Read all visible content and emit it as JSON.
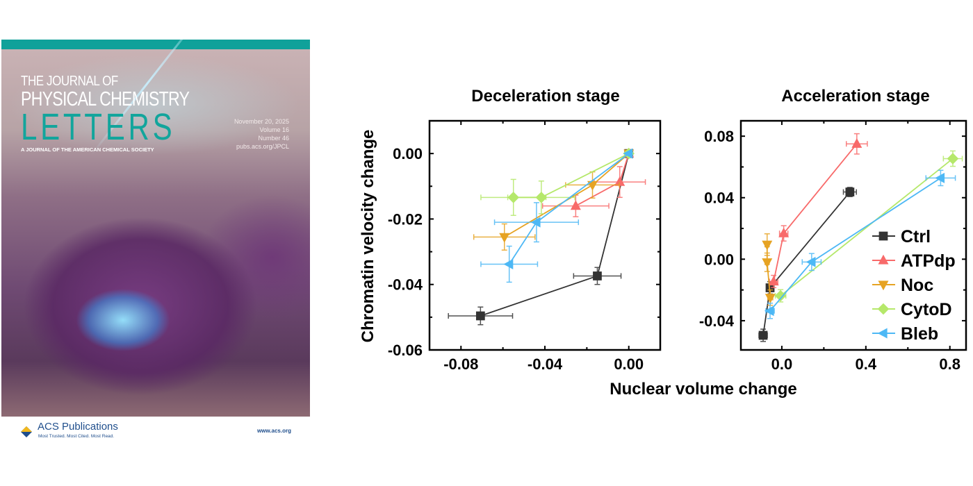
{
  "cover": {
    "journal_line1": "THE JOURNAL OF",
    "journal_line2": "PHYSICAL CHEMISTRY",
    "journal_line3": "LETTERS",
    "subtitle": "A JOURNAL OF THE AMERICAN CHEMICAL SOCIETY",
    "date": "November 20, 2025",
    "volume": "Volume 16",
    "number": "Number 46",
    "url": "pubs.acs.org/JPCL",
    "publisher": "ACS Publications",
    "publisher_tagline": "Most Trusted. Most Cited. Most Read.",
    "website": "www.acs.org",
    "colors": {
      "teal": "#10a19a",
      "acs_blue": "#1f4e8c"
    }
  },
  "shared_labels": {
    "xlabel": "Nuclear volume change",
    "ylabel": "Chromatin velocity change"
  },
  "series_styles": [
    {
      "name": "Ctrl",
      "color": "#333333",
      "marker": "square"
    },
    {
      "name": "ATPdp",
      "color": "#f86a6a",
      "marker": "triangle-up"
    },
    {
      "name": "Noc",
      "color": "#e6a323",
      "marker": "triangle-down"
    },
    {
      "name": "CytoD",
      "color": "#b5e86a",
      "marker": "diamond"
    },
    {
      "name": "Bleb",
      "color": "#4db8f5",
      "marker": "triangle-left"
    }
  ],
  "chart_data": [
    {
      "type": "scatter",
      "title": "Deceleration stage",
      "xlim": [
        -0.095,
        0.015
      ],
      "ylim": [
        -0.06,
        0.01
      ],
      "xticks": [
        -0.08,
        -0.04,
        0.0
      ],
      "xtick_labels": [
        "-0.08",
        "-0.04",
        "0.00"
      ],
      "yticks": [
        0.0,
        -0.02,
        -0.04,
        -0.06
      ],
      "ytick_labels": [
        "0.00",
        "-0.02",
        "-0.04",
        "-0.06"
      ],
      "grid": false,
      "legend": null,
      "series": [
        {
          "name": "Ctrl",
          "points": [
            {
              "x": -0.0707,
              "y": -0.0496,
              "xerr": 0.0153,
              "yerr": 0.0027
            },
            {
              "x": -0.015,
              "y": -0.0374,
              "xerr": 0.0113,
              "yerr": 0.0026
            },
            {
              "x": 0,
              "y": 0,
              "xerr": 0,
              "yerr": 0
            }
          ]
        },
        {
          "name": "ATPdp",
          "points": [
            {
              "x": -0.0253,
              "y": -0.016,
              "xerr": 0.0158,
              "yerr": 0.0033
            },
            {
              "x": -0.0043,
              "y": -0.0087,
              "xerr": 0.0122,
              "yerr": 0.0047
            },
            {
              "x": 0,
              "y": 0,
              "xerr": 0,
              "yerr": 0
            }
          ]
        },
        {
          "name": "Noc",
          "points": [
            {
              "x": -0.0593,
              "y": -0.0255,
              "xerr": 0.0146,
              "yerr": 0.004
            },
            {
              "x": -0.0173,
              "y": -0.0096,
              "xerr": 0.0128,
              "yerr": 0.004
            },
            {
              "x": 0,
              "y": 0,
              "xerr": 0,
              "yerr": 0
            }
          ]
        },
        {
          "name": "CytoD",
          "points": [
            {
              "x": -0.055,
              "y": -0.0134,
              "xerr": 0.0155,
              "yerr": 0.0055
            },
            {
              "x": -0.0417,
              "y": -0.0134,
              "xerr": 0.016,
              "yerr": 0.005
            },
            {
              "x": 0,
              "y": 0,
              "xerr": 0,
              "yerr": 0
            }
          ]
        },
        {
          "name": "Bleb",
          "points": [
            {
              "x": -0.057,
              "y": -0.0338,
              "xerr": 0.0135,
              "yerr": 0.0055
            },
            {
              "x": -0.044,
              "y": -0.021,
              "xerr": 0.02,
              "yerr": 0.006
            },
            {
              "x": 0,
              "y": 0,
              "xerr": 0,
              "yerr": 0
            }
          ]
        }
      ]
    },
    {
      "type": "scatter",
      "title": "Acceleration stage",
      "xlim": [
        -0.195,
        0.877
      ],
      "ylim": [
        -0.059,
        0.09
      ],
      "xticks": [
        0.0,
        0.4,
        0.8
      ],
      "xtick_labels": [
        "0.0",
        "0.4",
        "0.8"
      ],
      "yticks": [
        0.08,
        0.04,
        0.0,
        -0.04
      ],
      "ytick_labels": [
        "0.08",
        "0.04",
        "0.00",
        "-0.04"
      ],
      "grid": false,
      "legend": "right",
      "series": [
        {
          "name": "Ctrl",
          "points": [
            {
              "x": -0.089,
              "y": -0.0495,
              "xerr": 0.02,
              "yerr": 0.004
            },
            {
              "x": -0.056,
              "y": -0.0186,
              "xerr": 0.012,
              "yerr": 0.004
            },
            {
              "x": 0.324,
              "y": 0.0437,
              "xerr": 0.031,
              "yerr": 0.003
            }
          ]
        },
        {
          "name": "ATPdp",
          "points": [
            {
              "x": -0.039,
              "y": -0.0145,
              "xerr": 0.02,
              "yerr": 0.004
            },
            {
              "x": 0.009,
              "y": 0.0168,
              "xerr": 0.02,
              "yerr": 0.005
            },
            {
              "x": 0.357,
              "y": 0.075,
              "xerr": 0.05,
              "yerr": 0.0066
            }
          ]
        },
        {
          "name": "Noc",
          "points": [
            {
              "x": -0.055,
              "y": -0.025,
              "xerr": 0.012,
              "yerr": 0.005
            },
            {
              "x": -0.07,
              "y": -0.002,
              "xerr": 0.01,
              "yerr": 0.006
            },
            {
              "x": -0.07,
              "y": 0.0095,
              "xerr": 0.01,
              "yerr": 0.007
            }
          ]
        },
        {
          "name": "CytoD",
          "points": [
            {
              "x": -0.006,
              "y": -0.0238,
              "xerr": 0.025,
              "yerr": 0.004
            },
            {
              "x": 0.814,
              "y": 0.0654,
              "xerr": 0.045,
              "yerr": 0.005
            }
          ]
        },
        {
          "name": "Bleb",
          "points": [
            {
              "x": -0.056,
              "y": -0.0336,
              "xerr": 0.02,
              "yerr": 0.005
            },
            {
              "x": 0.142,
              "y": -0.0018,
              "xerr": 0.045,
              "yerr": 0.0055
            },
            {
              "x": 0.756,
              "y": 0.0528,
              "xerr": 0.07,
              "yerr": 0.005
            }
          ]
        }
      ]
    }
  ]
}
